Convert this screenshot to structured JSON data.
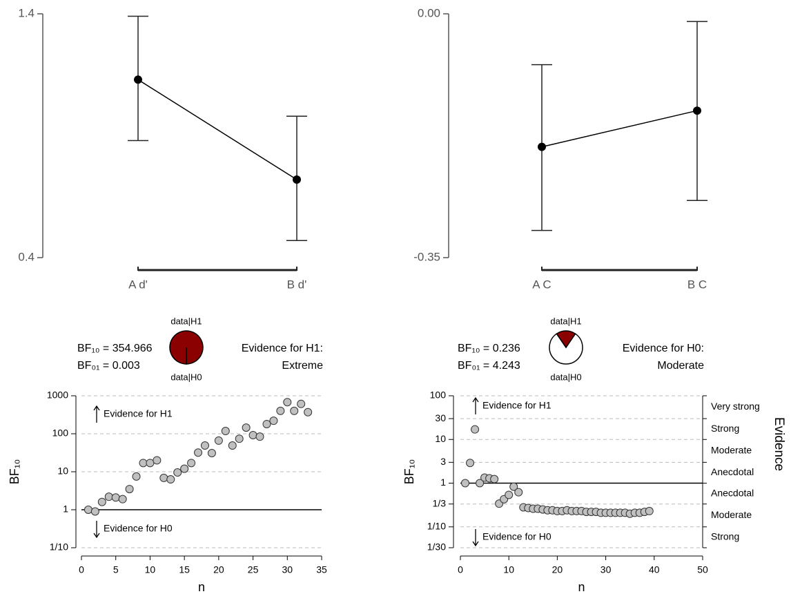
{
  "chart_data": [
    {
      "type": "line",
      "categories": [
        "A d'",
        "B d'"
      ],
      "values": [
        1.13,
        0.72
      ],
      "lower": [
        0.88,
        0.47
      ],
      "upper": [
        1.39,
        0.98
      ],
      "color": "#000000",
      "ylim": [
        0.4,
        1.4
      ],
      "yticks": [
        0.4,
        1.4
      ]
    },
    {
      "type": "line",
      "categories": [
        "A C",
        "B C"
      ],
      "values": [
        -0.191,
        -0.139
      ],
      "lower": [
        -0.311,
        -0.268
      ],
      "upper": [
        -0.073,
        -0.011
      ],
      "color": "#000000",
      "ylim": [
        -0.35,
        0
      ],
      "yticks": [
        -0.35,
        {
          "value": 0,
          "label": "0.00"
        }
      ]
    },
    {
      "type": "scatter",
      "stats": [
        "BF₁₀ = 354.966",
        "BF₀₁ = 0.003"
      ],
      "conclusion": [
        "Evidence for H1:",
        "Extreme"
      ],
      "pie": {
        "labels": [
          "data|H1",
          "data|H0"
        ],
        "values": [
          354.966,
          1
        ],
        "colors": [
          "#8b0000",
          "#ffffff"
        ]
      },
      "annotations": [
        "Evidence for H1",
        "Evidence for H0"
      ],
      "xlabel": "n",
      "ylabel": "BF₁₀",
      "x": [
        1,
        2,
        3,
        4,
        5,
        6,
        7,
        8,
        9,
        10,
        11,
        12,
        13,
        14,
        15,
        16,
        17,
        18,
        19,
        20,
        21,
        22,
        23,
        24,
        25,
        26,
        27,
        28,
        29,
        30,
        31,
        32,
        33
      ],
      "values": [
        1,
        0.9,
        1.6,
        2.2,
        2.1,
        1.9,
        3.5,
        7.5,
        17,
        17,
        20,
        6.9,
        6.3,
        9.6,
        12,
        17,
        32,
        49,
        31,
        66,
        118,
        49,
        74,
        145,
        92,
        84,
        180,
        220,
        400,
        680,
        400,
        610,
        370
      ],
      "color": "#c0c0c0",
      "xlim": [
        0,
        35
      ],
      "xticks": [
        0,
        5,
        10,
        15,
        20,
        25,
        30,
        35
      ],
      "ylim": [
        0.1,
        1000
      ],
      "yticks": [
        {
          "value": 0.1,
          "label": "1/10"
        },
        1,
        10,
        100,
        1000
      ],
      "log_y": true,
      "grid": true,
      "reference_line": 1
    },
    {
      "type": "scatter",
      "stats": [
        "BF₁₀ = 0.236",
        "BF₀₁ = 4.243"
      ],
      "conclusion": [
        "Evidence for H0:",
        "Moderate"
      ],
      "pie": {
        "labels": [
          "data|H1",
          "data|H0"
        ],
        "values": [
          0.236,
          1
        ],
        "colors": [
          "#8b0000",
          "#ffffff"
        ]
      },
      "annotations": [
        "Evidence for H1",
        "Evidence for H0"
      ],
      "xlabel": "n",
      "ylabel": "BF₁₀",
      "ylabel2": "Evidence",
      "evidence_bands": [
        "Very strong",
        "Strong",
        "Moderate",
        "Anecdotal",
        "Anecdotal",
        "Moderate",
        "Strong"
      ],
      "x": [
        1,
        2,
        3,
        4,
        5,
        6,
        7,
        8,
        9,
        10,
        11,
        12,
        13,
        14,
        15,
        16,
        17,
        18,
        19,
        20,
        21,
        22,
        23,
        24,
        25,
        26,
        27,
        28,
        29,
        30,
        31,
        32,
        33,
        34,
        35,
        36,
        37,
        38,
        39
      ],
      "values": [
        1,
        2.9,
        17,
        1,
        1.34,
        1.29,
        1.24,
        0.34,
        0.43,
        0.54,
        0.83,
        0.62,
        0.28,
        0.27,
        0.26,
        0.26,
        0.25,
        0.24,
        0.24,
        0.23,
        0.23,
        0.24,
        0.23,
        0.23,
        0.23,
        0.22,
        0.22,
        0.22,
        0.21,
        0.21,
        0.21,
        0.21,
        0.21,
        0.21,
        0.2,
        0.21,
        0.21,
        0.22,
        0.23
      ],
      "color": "#c0c0c0",
      "xlim": [
        0,
        50
      ],
      "xticks": [
        0,
        10,
        20,
        30,
        40,
        50
      ],
      "ylim": [
        {
          "value": 0.0333,
          "label": "1/30"
        },
        100
      ],
      "yticks": [
        {
          "value": 0.0333,
          "label": "1/30"
        },
        {
          "value": 0.1,
          "label": "1/10"
        },
        {
          "value": 0.3333,
          "label": "1/3"
        },
        1,
        3,
        10,
        30,
        100
      ],
      "log_y": true,
      "grid": true,
      "reference_line": 1
    }
  ]
}
